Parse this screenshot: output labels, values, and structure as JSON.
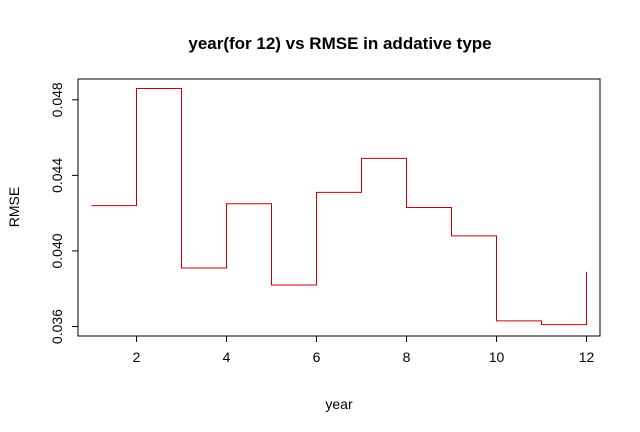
{
  "chart_data": {
    "type": "line",
    "title": "year(for 12) vs RMSE in addative type",
    "xlabel": "year",
    "ylabel": "RMSE",
    "x": [
      1,
      2,
      3,
      4,
      5,
      6,
      7,
      8,
      9,
      10,
      11,
      12
    ],
    "series": [
      {
        "values": [
          0.0424,
          0.0486,
          0.0391,
          0.0425,
          0.0382,
          0.0431,
          0.0449,
          0.0423,
          0.0408,
          0.0363,
          0.0361,
          0.0389
        ]
      }
    ],
    "step": "post",
    "series_color": "#cc0000",
    "x_ticks": [
      2,
      4,
      6,
      8,
      10,
      12
    ],
    "y_ticks": [
      0.036,
      0.04,
      0.044,
      0.048
    ],
    "y_tick_labels": [
      "0.036",
      "0.040",
      "0.044",
      "0.048"
    ],
    "xlim": [
      0.7,
      12.3
    ],
    "ylim": [
      0.0355,
      0.0491
    ],
    "grid": false
  }
}
